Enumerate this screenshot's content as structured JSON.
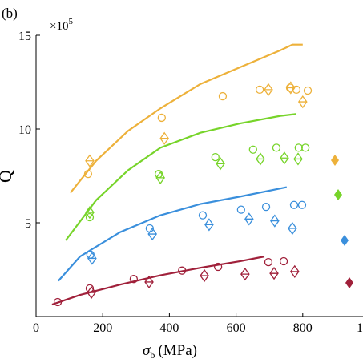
{
  "chart_data": {
    "type": "scatter",
    "panel_label": "(b)",
    "axis_multiplier": "×10",
    "axis_multiplier_exponent": "5",
    "ylabel": "Q",
    "xlabel_symbol": "σ",
    "xlabel_subscript": "b",
    "xlabel_unit": "(MPa)",
    "xlim": [
      0,
      1000
    ],
    "xticks": [
      0,
      200,
      400,
      600,
      800,
      1000
    ],
    "ylim": [
      0,
      15
    ],
    "yticks": [
      5,
      10,
      15
    ],
    "series": [
      {
        "color": "#edb13a",
        "line": {
          "x": [
            103,
            180,
            276,
            373,
            493,
            613,
            733,
            769,
            800
          ],
          "y": [
            6.6,
            8.3,
            9.9,
            11.1,
            12.4,
            13.3,
            14.2,
            14.5,
            14.5
          ]
        },
        "circles": {
          "x": [
            156,
            377,
            560,
            671,
            762,
            781,
            815
          ],
          "y": [
            7.6,
            10.6,
            11.75,
            12.1,
            12.2,
            12.1,
            12.05
          ]
        },
        "diamonds": {
          "x": [
            161,
            385,
            697,
            764,
            800
          ],
          "y": [
            8.3,
            9.5,
            12.1,
            12.2,
            11.45
          ]
        }
      },
      {
        "color": "#77d42a",
        "line": {
          "x": [
            89,
            180,
            276,
            373,
            493,
            613,
            733,
            781
          ],
          "y": [
            4.06,
            6.2,
            7.8,
            9.0,
            9.8,
            10.3,
            10.7,
            10.8
          ]
        },
        "circles": {
          "x": [
            161,
            368,
            538,
            651,
            721,
            788,
            808
          ],
          "y": [
            5.3,
            7.6,
            8.5,
            8.9,
            9.0,
            9.0,
            9.0
          ]
        },
        "diamonds": {
          "x": [
            161,
            373,
            553,
            673,
            745,
            786
          ],
          "y": [
            5.55,
            7.4,
            8.15,
            8.4,
            8.45,
            8.4
          ]
        }
      },
      {
        "color": "#3a8fdc",
        "line": {
          "x": [
            67,
            132,
            252,
            373,
            493,
            613,
            752
          ],
          "y": [
            1.9,
            3.2,
            4.5,
            5.4,
            6.0,
            6.4,
            6.9
          ]
        },
        "circles": {
          "x": [
            163,
            341,
            500,
            615,
            690,
            774,
            798
          ],
          "y": [
            3.3,
            4.7,
            5.4,
            5.7,
            5.85,
            5.95,
            5.95
          ]
        },
        "diamonds": {
          "x": [
            168,
            349,
            519,
            639,
            716,
            769
          ],
          "y": [
            3.1,
            4.4,
            4.9,
            5.2,
            5.1,
            4.7
          ]
        }
      },
      {
        "color": "#a0203a",
        "line": {
          "x": [
            48,
            132,
            252,
            373,
            493,
            613,
            685
          ],
          "y": [
            0.64,
            1.15,
            1.7,
            2.2,
            2.6,
            2.95,
            3.2
          ]
        },
        "circles": {
          "x": [
            65,
            161,
            293,
            438,
            546,
            697,
            743
          ],
          "y": [
            0.77,
            1.5,
            2.0,
            2.45,
            2.65,
            2.9,
            2.95
          ]
        },
        "diamonds": {
          "x": [
            166,
            339,
            505,
            627,
            714,
            776
          ],
          "y": [
            1.28,
            1.84,
            2.18,
            2.26,
            2.3,
            2.4
          ]
        }
      }
    ]
  }
}
